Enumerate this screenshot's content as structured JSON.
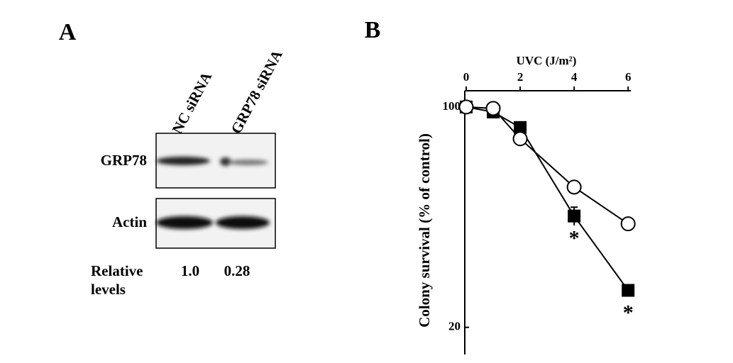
{
  "panel_a": {
    "label": "A",
    "lanes": [
      "NC siRNA",
      "GRP78 siRNA"
    ],
    "blots": [
      "GRP78",
      "Actin"
    ],
    "relative_label": [
      "Relative",
      "levels"
    ],
    "relative_levels": [
      "1.0",
      "0.28"
    ]
  },
  "panel_b": {
    "label": "B",
    "chart_data": {
      "type": "line",
      "xlabel": "UVC (J/m²)",
      "ylabel": "Colony survival (% of control)",
      "x": [
        0,
        1,
        2,
        4,
        6
      ],
      "series": [
        {
          "color": "#000000",
          "marker": "square",
          "values": [
            100,
            96.4,
            86.1,
            45.1,
            26.2
          ],
          "errors": [
            null,
            null,
            null,
            3,
            null
          ]
        },
        {
          "color": "#000000",
          "marker": "circle",
          "values": [
            100,
            99,
            79.3,
            55.7,
            42.6
          ]
        }
      ],
      "annotations": [
        {
          "text": "*",
          "x": 4
        },
        {
          "text": "*",
          "x": 6
        }
      ],
      "xlim": [
        0,
        6.1
      ],
      "xticks": [
        0,
        2,
        4,
        6
      ],
      "ylim": [
        16.4,
        112.6
      ],
      "yticks": [
        20,
        100
      ],
      "log_y": true,
      "x_axis_position": "top"
    }
  }
}
